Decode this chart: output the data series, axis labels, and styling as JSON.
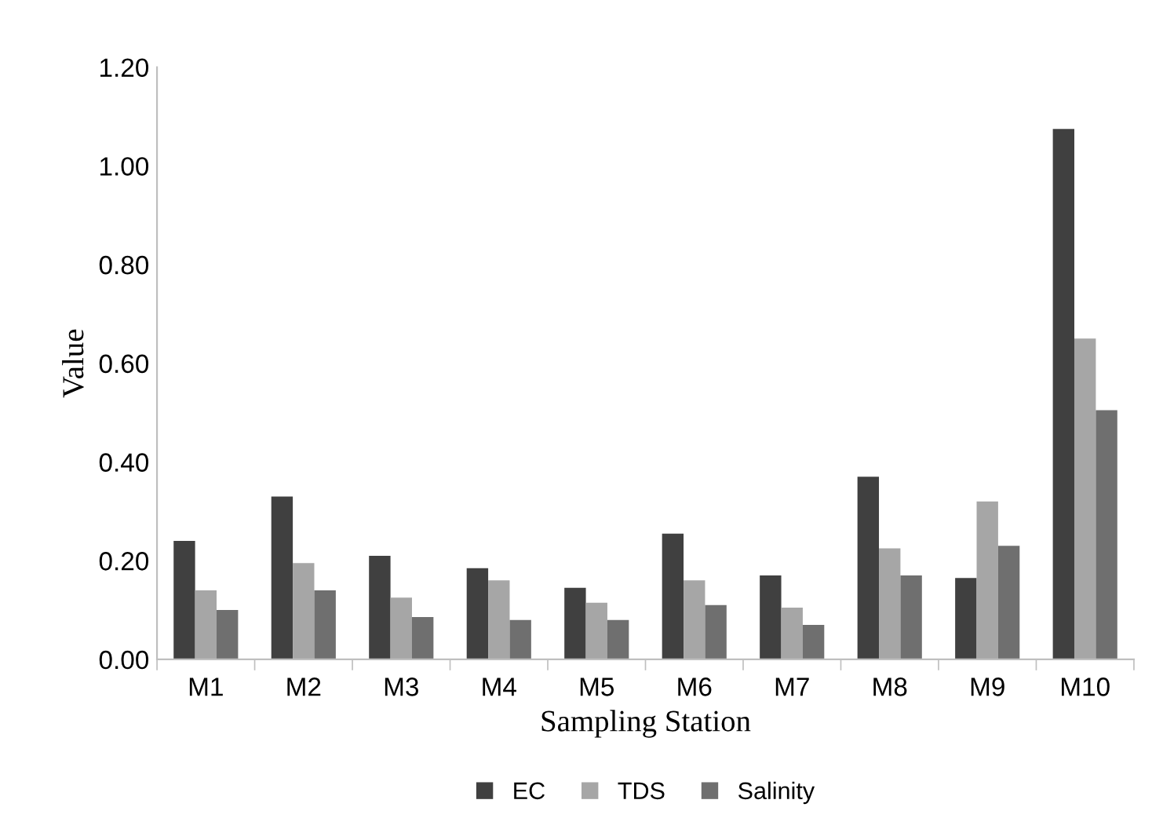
{
  "chart_data": {
    "type": "bar",
    "xlabel": "Sampling Station",
    "ylabel": "Value",
    "categories": [
      "M1",
      "M2",
      "M3",
      "M4",
      "M5",
      "M6",
      "M7",
      "M8",
      "M9",
      "M10"
    ],
    "series": [
      {
        "name": "EC",
        "color": "#404040",
        "values": [
          0.24,
          0.33,
          0.21,
          0.185,
          0.145,
          0.255,
          0.17,
          0.37,
          0.165,
          1.075
        ]
      },
      {
        "name": "TDS",
        "color": "#a6a6a6",
        "values": [
          0.14,
          0.195,
          0.125,
          0.16,
          0.115,
          0.16,
          0.105,
          0.225,
          0.32,
          0.65
        ]
      },
      {
        "name": "Salinity",
        "color": "#6f6f6f",
        "values": [
          0.1,
          0.14,
          0.086,
          0.08,
          0.08,
          0.11,
          0.07,
          0.17,
          0.23,
          0.505
        ]
      }
    ],
    "ylim": [
      0,
      1.2
    ],
    "yticks": [
      {
        "value": 0,
        "label": "0.00"
      },
      {
        "value": 0.2,
        "label": "0.20"
      },
      {
        "value": 0.4,
        "label": "0.40"
      },
      {
        "value": 0.6,
        "label": "0.60"
      },
      {
        "value": 0.8,
        "label": "0.80"
      },
      {
        "value": 1.0,
        "label": "1.00"
      },
      {
        "value": 1.2,
        "label": "1.20"
      }
    ],
    "grid": false,
    "legend": "bottom"
  }
}
